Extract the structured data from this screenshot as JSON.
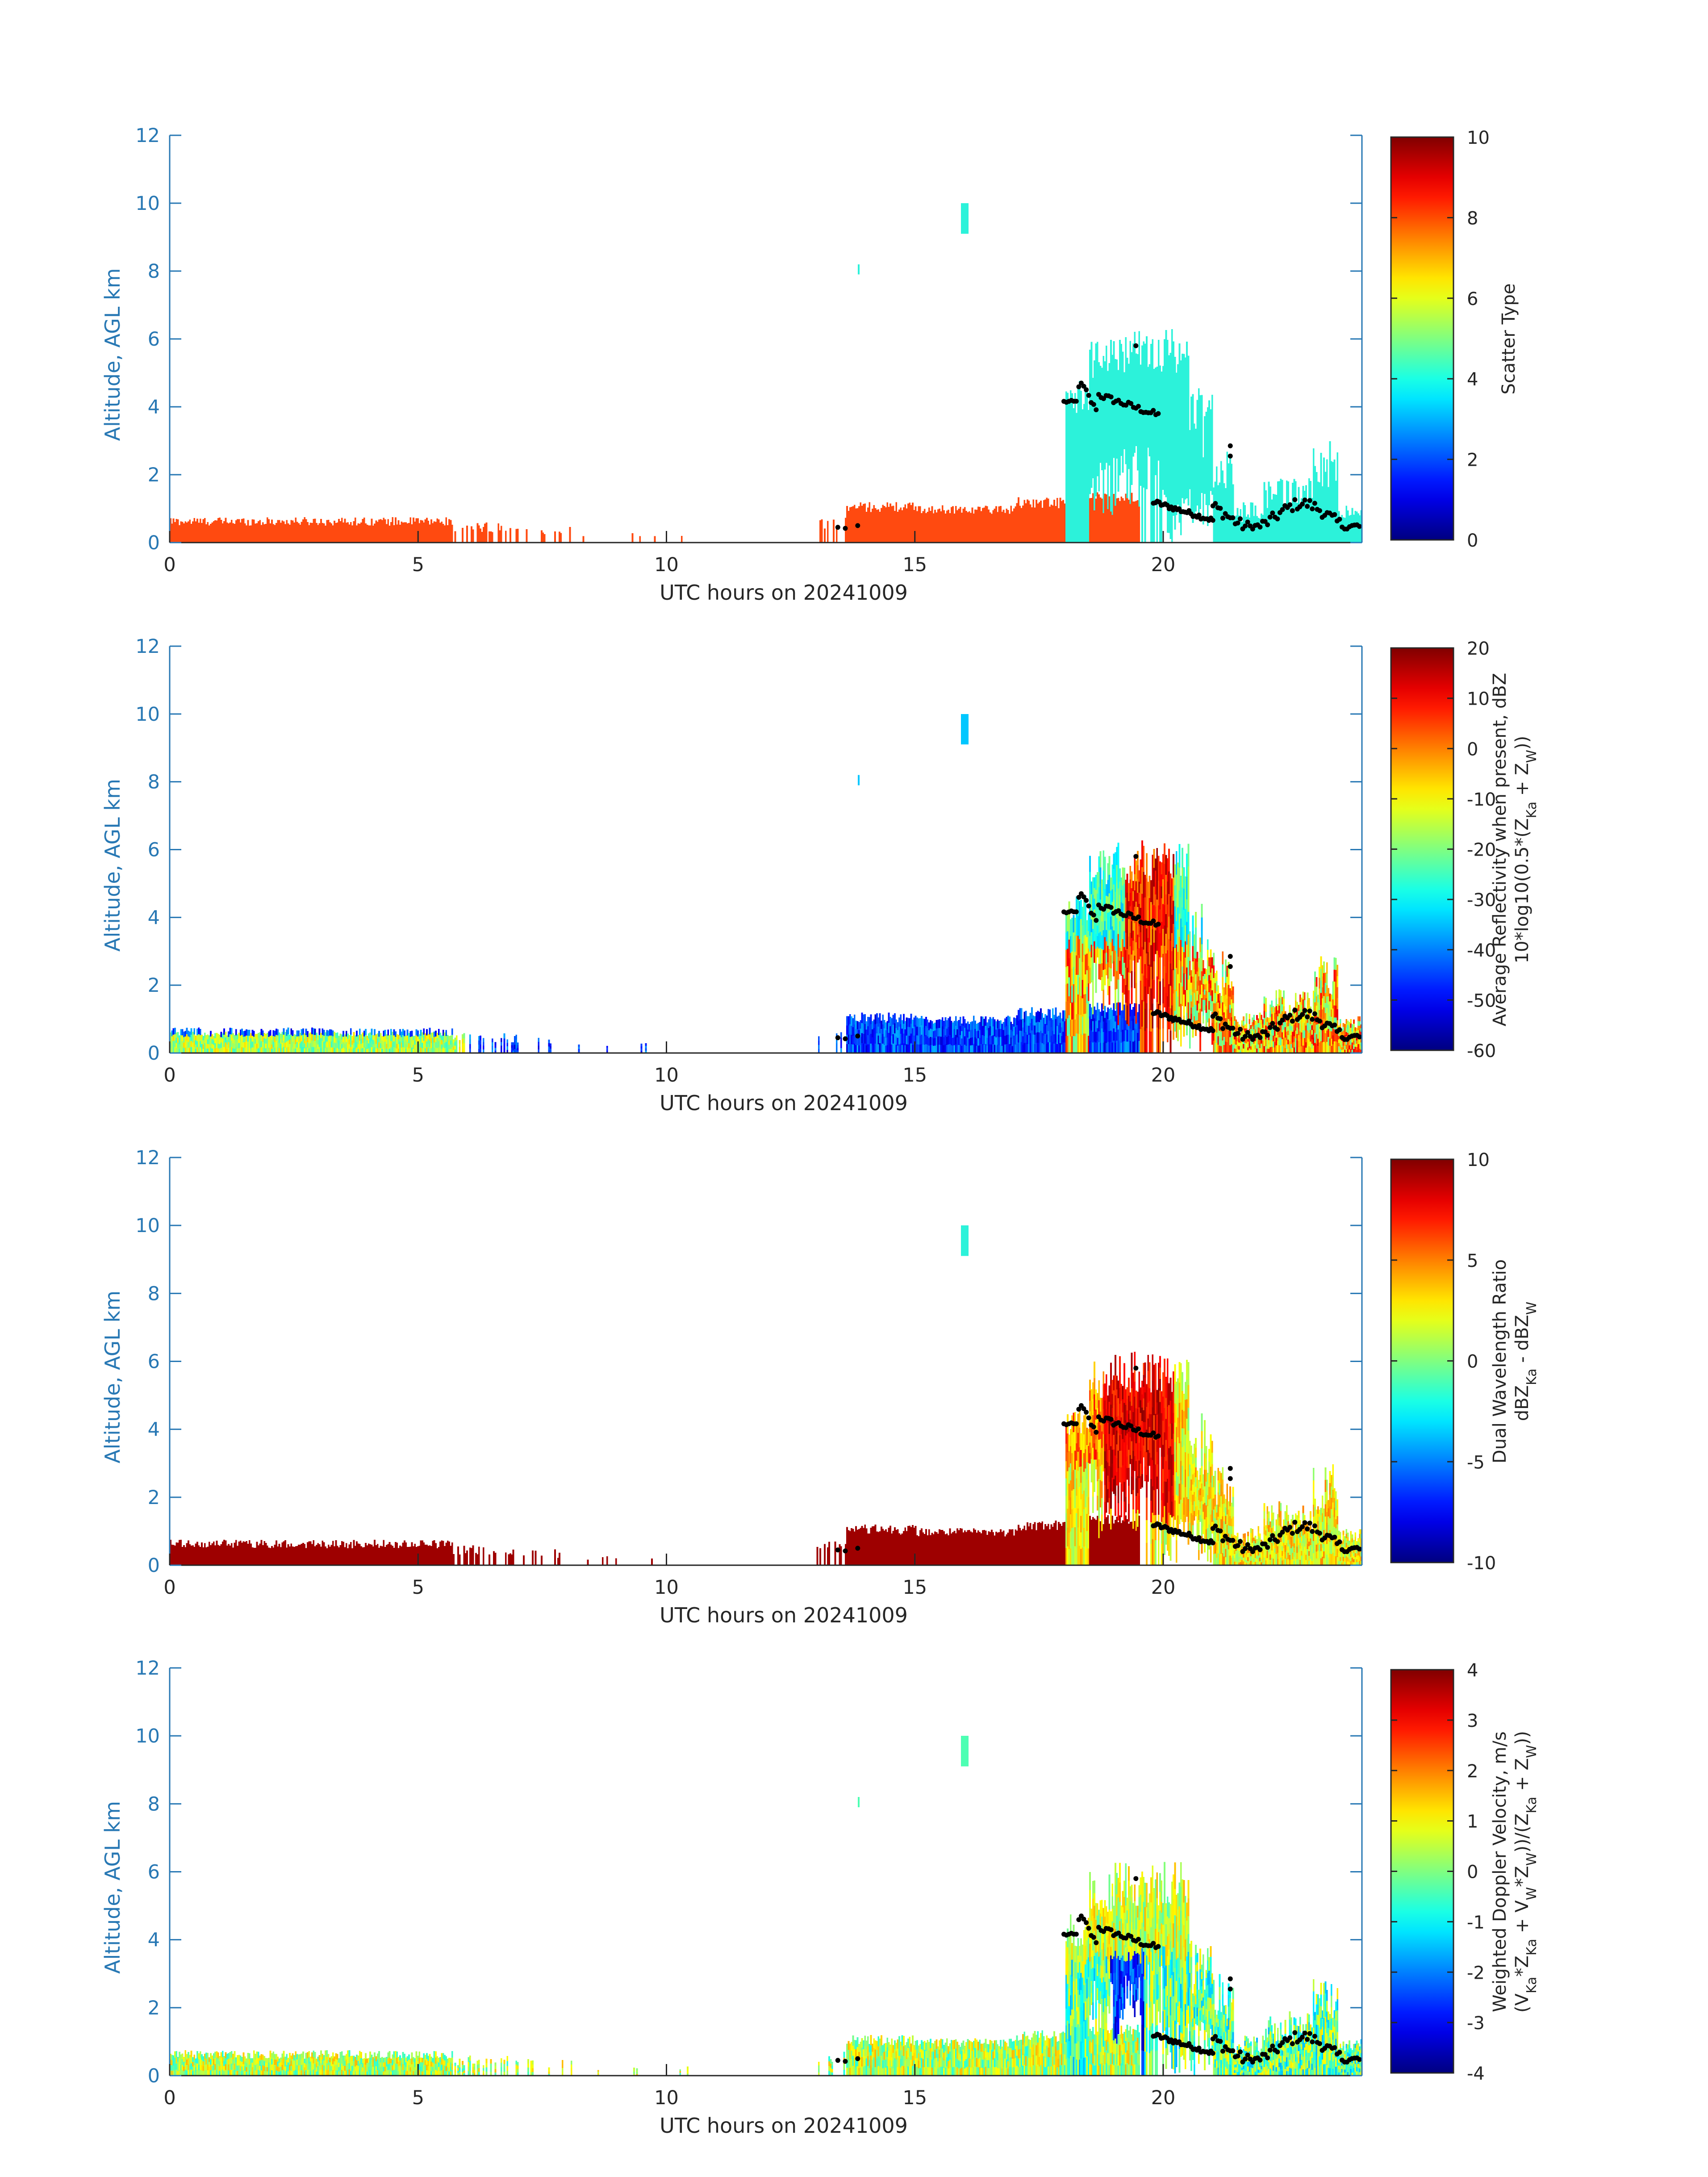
{
  "figure": {
    "xlabel": "UTC hours on 20241009",
    "ylabel": "Altitude, AGL km",
    "axis_color": "#2878b4",
    "text_color": "#262626"
  },
  "chart_data": [
    {
      "type": "heatmap",
      "xlabel": "UTC hours on 20241009",
      "ylabel": "Altitude, AGL km",
      "xlim": [
        0,
        24
      ],
      "ylim": [
        0,
        12
      ],
      "xticks": [
        "0",
        "5",
        "10",
        "15",
        "20"
      ],
      "yticks": [
        "0",
        "2",
        "4",
        "6",
        "8",
        "10",
        "12"
      ],
      "colorbar": {
        "label_lines": [
          {
            "parts": [
              {
                "t": "Scatter Type"
              }
            ]
          }
        ],
        "range": [
          0,
          10
        ],
        "ticks": [
          "0",
          "2",
          "4",
          "6",
          "8",
          "10"
        ]
      }
    },
    {
      "type": "heatmap",
      "xlabel": "UTC hours on 20241009",
      "ylabel": "Altitude, AGL km",
      "xlim": [
        0,
        24
      ],
      "ylim": [
        0,
        12
      ],
      "xticks": [
        "0",
        "5",
        "10",
        "15",
        "20"
      ],
      "yticks": [
        "0",
        "2",
        "4",
        "6",
        "8",
        "10",
        "12"
      ],
      "colorbar": {
        "label_lines": [
          {
            "parts": [
              {
                "t": "Average Reflectivity when present, dBZ"
              }
            ]
          },
          {
            "parts": [
              {
                "t": "10*log10(0.5*(Z"
              },
              {
                "t": "Ka",
                "sub": true
              },
              {
                "t": " + Z"
              },
              {
                "t": "W",
                "sub": true
              },
              {
                "t": "))"
              }
            ]
          }
        ],
        "range": [
          -60,
          20
        ],
        "ticks": [
          "-60",
          "-50",
          "-40",
          "-30",
          "-20",
          "-10",
          "0",
          "10",
          "20"
        ]
      }
    },
    {
      "type": "heatmap",
      "xlabel": "UTC hours on 20241009",
      "ylabel": "Altitude, AGL km",
      "xlim": [
        0,
        24
      ],
      "ylim": [
        0,
        12
      ],
      "xticks": [
        "0",
        "5",
        "10",
        "15",
        "20"
      ],
      "yticks": [
        "0",
        "2",
        "4",
        "6",
        "8",
        "10",
        "12"
      ],
      "colorbar": {
        "label_lines": [
          {
            "parts": [
              {
                "t": "Dual Wavelength Ratio"
              }
            ]
          },
          {
            "parts": [
              {
                "t": "dBZ"
              },
              {
                "t": "Ka",
                "sub": true
              },
              {
                "t": " - dBZ"
              },
              {
                "t": "W",
                "sub": true
              }
            ]
          }
        ],
        "range": [
          -10,
          10
        ],
        "ticks": [
          "-10",
          "-5",
          "0",
          "5",
          "10"
        ]
      }
    },
    {
      "type": "heatmap",
      "xlabel": "UTC hours on 20241009",
      "ylabel": "Altitude, AGL km",
      "xlim": [
        0,
        24
      ],
      "ylim": [
        0,
        12
      ],
      "xticks": [
        "0",
        "5",
        "10",
        "15",
        "20"
      ],
      "yticks": [
        "0",
        "2",
        "4",
        "6",
        "8",
        "10",
        "12"
      ],
      "colorbar": {
        "label_lines": [
          {
            "parts": [
              {
                "t": "Weighted Doppler Velocity, m/s"
              }
            ]
          },
          {
            "parts": [
              {
                "t": "(V"
              },
              {
                "t": "Ka",
                "sub": true
              },
              {
                "t": "*Z"
              },
              {
                "t": "Ka",
                "sub": true
              },
              {
                "t": " + V"
              },
              {
                "t": "W",
                "sub": true
              },
              {
                "t": "*Z"
              },
              {
                "t": "W",
                "sub": true
              },
              {
                "t": "))/(Z"
              },
              {
                "t": "Ka",
                "sub": true
              },
              {
                "t": " + Z"
              },
              {
                "t": "W",
                "sub": true
              },
              {
                "t": "))"
              }
            ]
          }
        ],
        "range": [
          -4,
          4
        ],
        "ticks": [
          "-4",
          "-3",
          "-2",
          "-1",
          "0",
          "1",
          "2",
          "3",
          "4"
        ]
      }
    }
  ]
}
